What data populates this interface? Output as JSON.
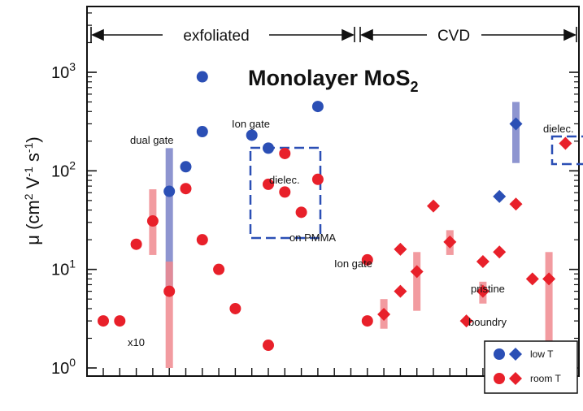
{
  "chart_data": {
    "type": "scatter",
    "title": "Monolayer MoS",
    "title_sub": "2",
    "ylabel_main": "μ (cm",
    "ylabel_exp1": "2",
    "ylabel_mid": " V",
    "ylabel_exp2": "-1",
    "ylabel_mid2": " s",
    "ylabel_exp3": "-1",
    "ylabel_end": ")",
    "y_scale": "log",
    "ylim": [
      0.85,
      2000
    ],
    "y_ticks": [
      {
        "value": 1,
        "base": "10",
        "exp": "0"
      },
      {
        "value": 10,
        "base": "10",
        "exp": "1"
      },
      {
        "value": 100,
        "base": "10",
        "exp": "2"
      },
      {
        "value": 1000,
        "base": "10",
        "exp": "3"
      }
    ],
    "sections": [
      {
        "label": "exfoliated"
      },
      {
        "label": "CVD"
      }
    ],
    "colors": {
      "low_T": "#2b4fb5",
      "room_T": "#e8202a",
      "low_T_bar": "#7a82c8",
      "room_T_bar": "#f08a8f",
      "box": "#2b4fb5"
    },
    "legend": {
      "position": "bottom-right",
      "items": [
        {
          "label": "low T",
          "series": "low_T"
        },
        {
          "label": "room T",
          "series": "room_T"
        }
      ]
    },
    "annotations": [
      "x10",
      "dual gate",
      "Ion gate",
      "dielec.",
      "on PMMA",
      "Ion gate",
      "pristine",
      "boundry",
      "dielec."
    ],
    "series": [
      {
        "name": "low T",
        "key": "low_T",
        "points": [
          {
            "x": 4,
            "y": 62,
            "marker": "circle",
            "range": [
              6,
              170
            ]
          },
          {
            "x": 5,
            "y": 110,
            "marker": "circle"
          },
          {
            "x": 6,
            "y": 900,
            "marker": "circle"
          },
          {
            "x": 6,
            "y": 250,
            "marker": "circle"
          },
          {
            "x": 9,
            "y": 230,
            "marker": "circle"
          },
          {
            "x": 10,
            "y": 170,
            "marker": "circle"
          },
          {
            "x": 13,
            "y": 450,
            "marker": "circle"
          },
          {
            "x": 24,
            "y": 55,
            "marker": "diamond"
          },
          {
            "x": 25,
            "y": 300,
            "marker": "diamond",
            "range": [
              120,
              500
            ]
          }
        ]
      },
      {
        "name": "room T",
        "key": "room_T",
        "points": [
          {
            "x": 0,
            "y": 3,
            "marker": "circle"
          },
          {
            "x": 1,
            "y": 3,
            "marker": "circle"
          },
          {
            "x": 2,
            "y": 18,
            "marker": "circle"
          },
          {
            "x": 3,
            "y": 31,
            "marker": "circle",
            "range": [
              14,
              65
            ]
          },
          {
            "x": 4,
            "y": 6,
            "marker": "circle",
            "range": [
              1,
              12
            ]
          },
          {
            "x": 5,
            "y": 66,
            "marker": "circle"
          },
          {
            "x": 6,
            "y": 20,
            "marker": "circle"
          },
          {
            "x": 7,
            "y": 10,
            "marker": "circle"
          },
          {
            "x": 8,
            "y": 4,
            "marker": "circle"
          },
          {
            "x": 10,
            "y": 1.7,
            "marker": "circle"
          },
          {
            "x": 10,
            "y": 73,
            "marker": "circle"
          },
          {
            "x": 11,
            "y": 61,
            "marker": "circle"
          },
          {
            "x": 11,
            "y": 150,
            "marker": "circle"
          },
          {
            "x": 12,
            "y": 38,
            "marker": "circle"
          },
          {
            "x": 13,
            "y": 82,
            "marker": "circle"
          },
          {
            "x": 16,
            "y": 12.5,
            "marker": "circle"
          },
          {
            "x": 16,
            "y": 3,
            "marker": "circle"
          },
          {
            "x": 17,
            "y": 3.5,
            "marker": "diamond",
            "range": [
              2.5,
              5
            ]
          },
          {
            "x": 18,
            "y": 16,
            "marker": "diamond"
          },
          {
            "x": 18,
            "y": 6,
            "marker": "diamond"
          },
          {
            "x": 19,
            "y": 9.5,
            "marker": "diamond",
            "range": [
              3.8,
              15
            ]
          },
          {
            "x": 20,
            "y": 44,
            "marker": "diamond"
          },
          {
            "x": 21,
            "y": 19,
            "marker": "diamond",
            "range": [
              14,
              25
            ]
          },
          {
            "x": 22,
            "y": 3,
            "marker": "diamond"
          },
          {
            "x": 23,
            "y": 12,
            "marker": "diamond"
          },
          {
            "x": 23,
            "y": 6,
            "marker": "diamond",
            "range": [
              4.5,
              7.5
            ]
          },
          {
            "x": 24,
            "y": 15,
            "marker": "diamond"
          },
          {
            "x": 25,
            "y": 46,
            "marker": "diamond"
          },
          {
            "x": 26,
            "y": 8,
            "marker": "diamond"
          },
          {
            "x": 27,
            "y": 8,
            "marker": "diamond",
            "range": [
              1,
              15
            ]
          },
          {
            "x": 28,
            "y": 190,
            "marker": "diamond"
          }
        ]
      }
    ]
  }
}
